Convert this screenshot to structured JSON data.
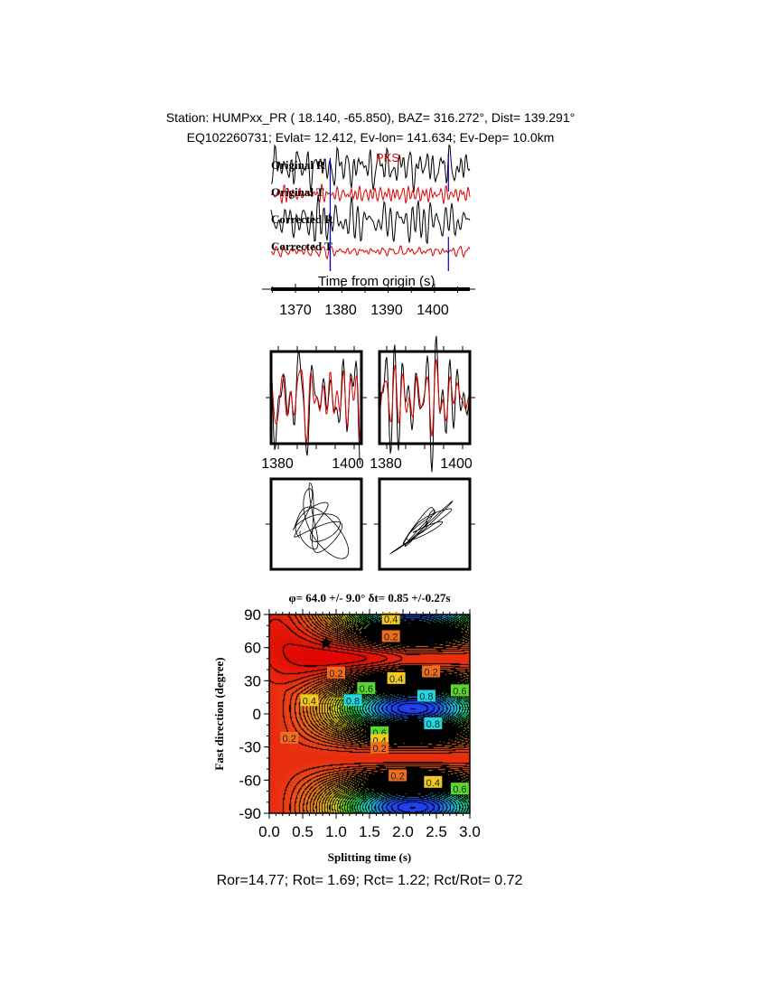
{
  "header": {
    "line1": "Station: HUMPxx_PR (  18.140,  -65.850), BAZ=  316.272°, Dist=  139.291°",
    "line2": "EQ102260731; Evlat=  12.412, Ev-lon= 141.634; Ev-Dep= 10.0km"
  },
  "traces": {
    "labels": [
      "Original R",
      "Original T",
      "Corrected R",
      "Corrected T"
    ],
    "phase": "PKS",
    "xlabel": "Time from origin (s)",
    "ticks": [
      "1370",
      "1380",
      "1390",
      "1400"
    ],
    "window_s": [
      1377.5,
      1403
    ],
    "colors": {
      "radial": "#000000",
      "transverse": "#e00000",
      "window": "#0000cc",
      "phase": "#e00000"
    }
  },
  "waveform_panels": {
    "ticks": [
      "1380",
      "1400"
    ]
  },
  "chart_data": {
    "type": "heatmap",
    "title": "φ= 64.0 +/- 9.0° δt= 0.85 +/-0.27s",
    "xlabel": "Splitting time (s)",
    "ylabel": "Fast direction (degree)",
    "xlim": [
      0,
      3
    ],
    "ylim": [
      -90,
      90
    ],
    "xticks": [
      "0.0",
      "0.5",
      "1.0",
      "1.5",
      "2.0",
      "2.5",
      "3.0"
    ],
    "yticks": [
      "90",
      "60",
      "30",
      "0",
      "-30",
      "-60",
      "-90"
    ],
    "best_fit": {
      "dt": 0.85,
      "phi": 64.0
    },
    "contour_labels": [
      "0.4",
      "0.2",
      "0.2",
      "0.4",
      "0.2",
      "0.6",
      "0.8",
      "0.8",
      "0.6",
      "0.4",
      "0.2",
      "0.8",
      "0.6",
      "0.4",
      "0.2",
      "0.2",
      "0.4",
      "0.6"
    ],
    "colormap": [
      "#e00000",
      "#f05a1e",
      "#f0a020",
      "#f0f020",
      "#30d030",
      "#20e0e0",
      "#2040f0"
    ]
  },
  "footer": "Ror=14.77; Rot= 1.69; Rct= 1.22; Rct/Rot= 0.72"
}
